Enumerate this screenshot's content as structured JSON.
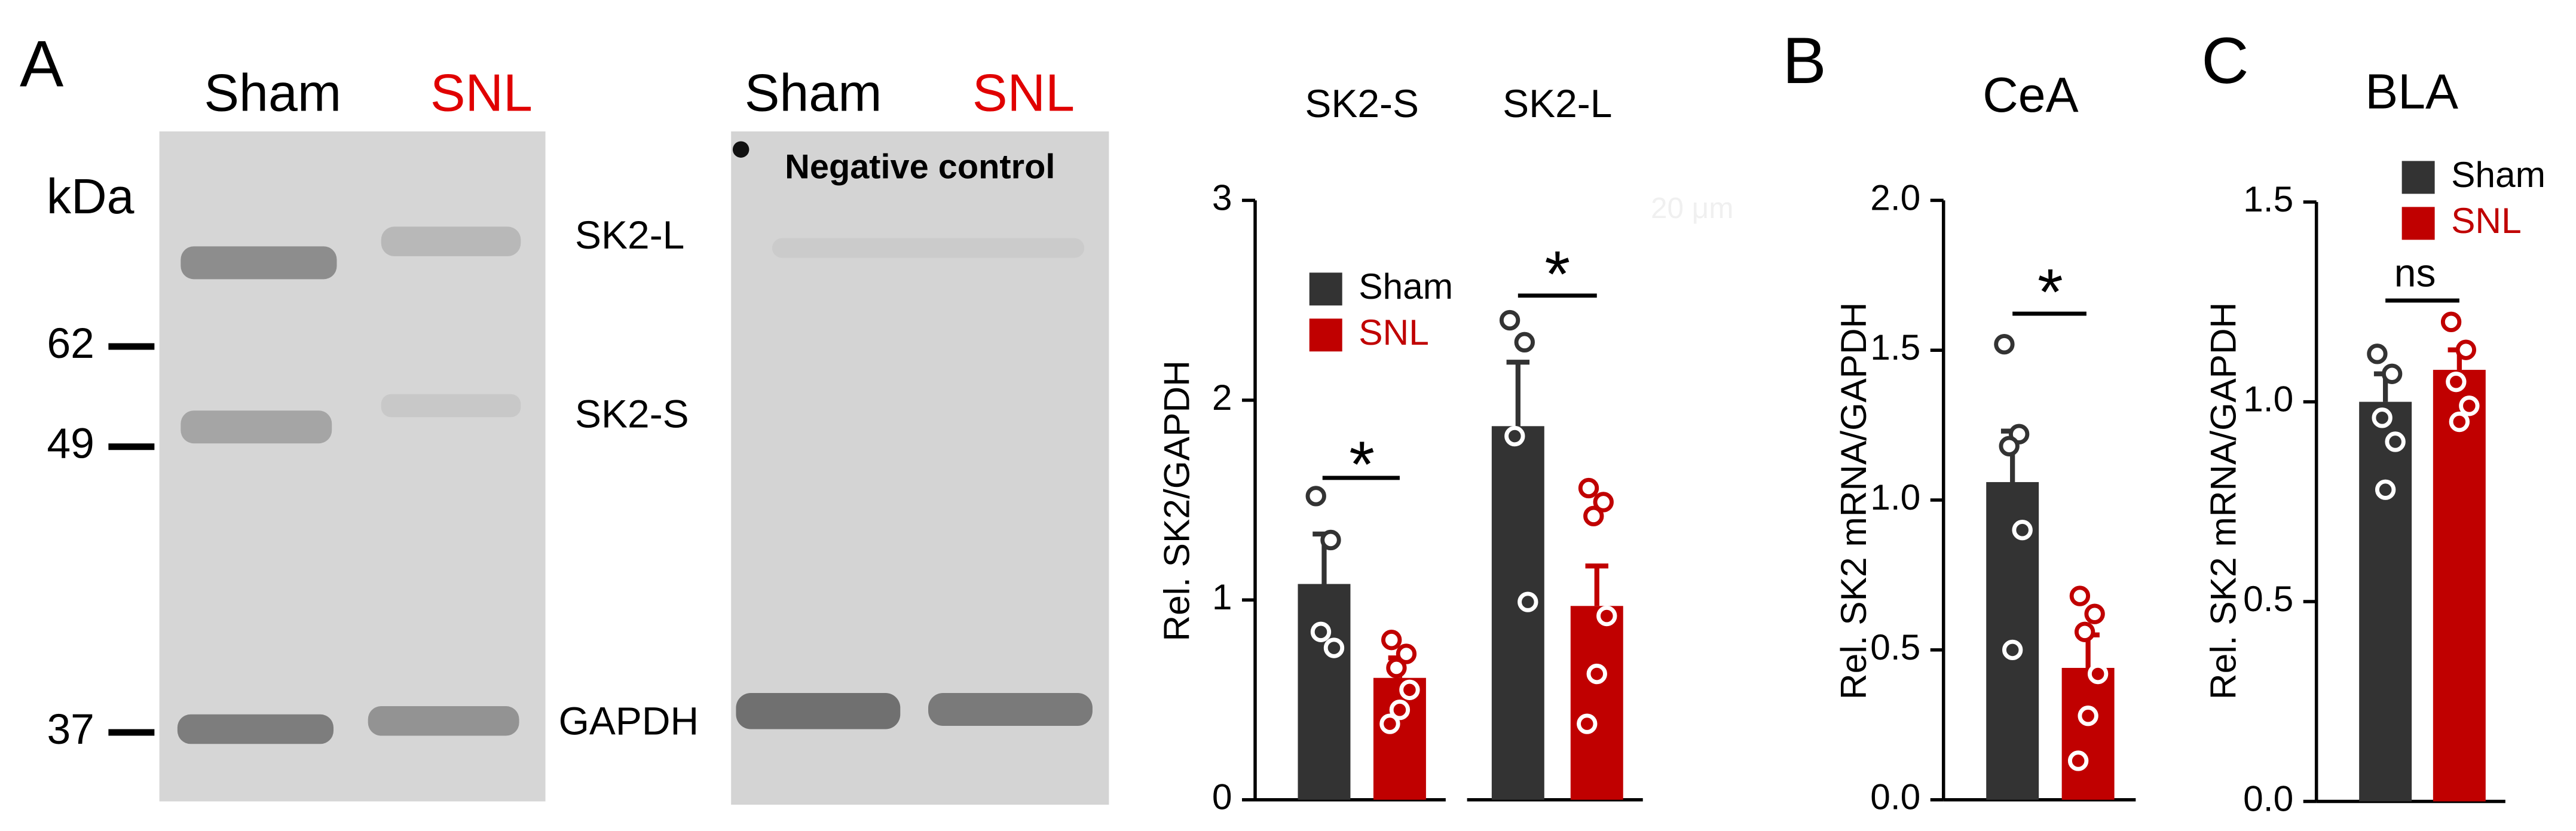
{
  "figure": {
    "panel_labels": [
      "A",
      "B",
      "C"
    ],
    "blot_1": {
      "lanes": [
        "Sham",
        "SNL"
      ],
      "marker_unit": "kDa",
      "markers": [
        "62",
        "49",
        "37"
      ],
      "bands": [
        "SK2-L",
        "SK2-S",
        "GAPDH"
      ]
    },
    "blot_2": {
      "lanes": [
        "Sham",
        "SNL"
      ],
      "caption": "Negative control",
      "scale": "20 μm"
    }
  },
  "chart_data": [
    {
      "type": "bar",
      "ylabel": "Rel. SK2/GAPDH",
      "categories": [
        "SK2-S",
        "SK2-L"
      ],
      "ylim": [
        0,
        3
      ],
      "yticks": [
        0,
        1,
        2,
        3
      ],
      "legend": true,
      "series": [
        {
          "name": "Sham",
          "color": "#333333",
          "values": [
            1.08,
            1.87
          ],
          "errors": [
            0.25,
            0.32
          ],
          "points": [
            [
              1.52,
              1.3,
              0.84,
              0.76
            ],
            [
              2.4,
              2.29,
              1.82,
              0.99
            ]
          ]
        },
        {
          "name": "SNL",
          "color": "#c00000",
          "values": [
            0.61,
            0.97
          ],
          "errors": [
            0.1,
            0.2
          ],
          "points": [
            [
              0.8,
              0.73,
              0.66,
              0.55,
              0.45,
              0.38
            ],
            [
              1.56,
              1.49,
              1.42,
              0.92,
              0.63,
              0.38
            ]
          ]
        }
      ],
      "annotations": [
        "*",
        "*"
      ]
    },
    {
      "type": "bar",
      "title": "CeA",
      "ylabel": "Rel. SK2 mRNA/GAPDH",
      "ylim": [
        0,
        2
      ],
      "yticks": [
        {
          "value": 0,
          "label": "0.0"
        },
        {
          "value": 0.5,
          "label": "0.5"
        },
        {
          "value": 1,
          "label": "1.0"
        },
        {
          "value": 1.5,
          "label": "1.5"
        },
        {
          "value": 2,
          "label": "2.0"
        }
      ],
      "legend": false,
      "series": [
        {
          "color": "#333333",
          "values": [
            1.06
          ],
          "errors": [
            0.17
          ],
          "points": [
            [
              1.52,
              1.22,
              1.18,
              0.9,
              0.5
            ]
          ]
        },
        {
          "color": "#c00000",
          "values": [
            0.44
          ],
          "errors": [
            0.11
          ],
          "points": [
            [
              0.68,
              0.62,
              0.56,
              0.42,
              0.28,
              0.13
            ]
          ]
        }
      ],
      "annotations": [
        "*"
      ]
    },
    {
      "type": "bar",
      "title": "BLA",
      "ylabel": "Rel. SK2 mRNA/GAPDH",
      "ylim": [
        0,
        1.5
      ],
      "yticks": [
        {
          "value": 0,
          "label": "0.0"
        },
        {
          "value": 0.5,
          "label": "0.5"
        },
        {
          "value": 1,
          "label": "1.0"
        },
        {
          "value": 1.5,
          "label": "1.5"
        }
      ],
      "legend": true,
      "series": [
        {
          "name": "Sham",
          "color": "#333333",
          "values": [
            1.0
          ],
          "errors": [
            0.07
          ],
          "points": [
            [
              1.12,
              1.07,
              0.96,
              0.9,
              0.78
            ]
          ]
        },
        {
          "name": "SNL",
          "color": "#c00000",
          "values": [
            1.08
          ],
          "errors": [
            0.05
          ],
          "points": [
            [
              1.2,
              1.13,
              1.05,
              0.99,
              0.95
            ]
          ]
        }
      ],
      "annotations": [
        "ns"
      ]
    }
  ]
}
